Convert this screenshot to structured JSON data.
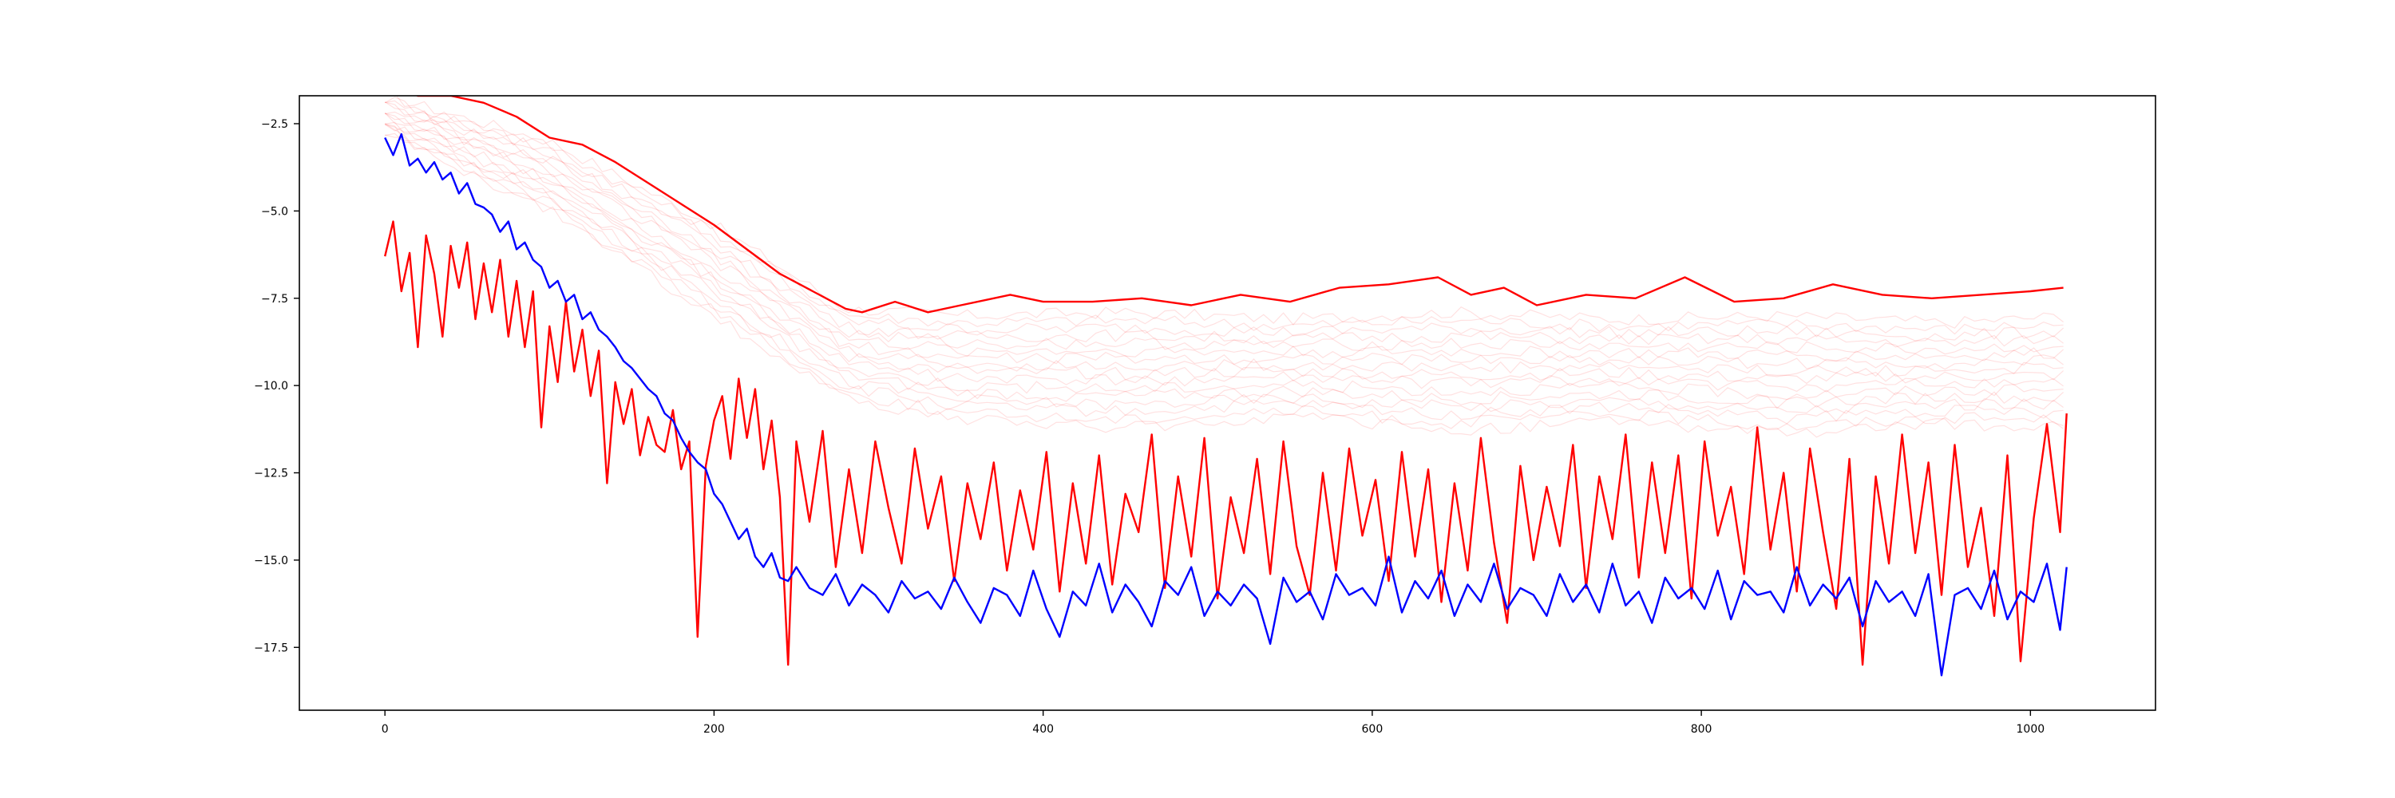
{
  "chart_data": {
    "type": "line",
    "title": "",
    "xlabel": "",
    "ylabel": "",
    "xlim": [
      -52,
      1076
    ],
    "ylim": [
      -19.3,
      -1.7
    ],
    "grid": false,
    "legend": "none",
    "x_ticks": [
      {
        "value": 0,
        "label": "0"
      },
      {
        "value": 200,
        "label": "200"
      },
      {
        "value": 400,
        "label": "400"
      },
      {
        "value": 600,
        "label": "600"
      },
      {
        "value": 800,
        "label": "800"
      },
      {
        "value": 1000,
        "label": "1000"
      }
    ],
    "y_ticks": [
      {
        "value": -2.5,
        "label": "−2.5"
      },
      {
        "value": -5.0,
        "label": "−5.0"
      },
      {
        "value": -7.5,
        "label": "−7.5"
      },
      {
        "value": -10.0,
        "label": "−10.0"
      },
      {
        "value": -12.5,
        "label": "−12.5"
      },
      {
        "value": -15.0,
        "label": "−15.0"
      },
      {
        "value": -17.5,
        "label": "−17.5"
      }
    ],
    "colors": {
      "upper": "#ff0000",
      "noisy_red": "#ff0000",
      "blue": "#0000ff",
      "faint": "#ff0000"
    },
    "series": [
      {
        "key": "upper",
        "color": "#ff0000",
        "x": [
          0,
          10,
          20,
          40,
          60,
          80,
          100,
          120,
          140,
          160,
          180,
          200,
          220,
          240,
          260,
          280,
          290,
          310,
          330,
          350,
          380,
          400,
          430,
          460,
          490,
          520,
          550,
          580,
          610,
          640,
          660,
          680,
          700,
          730,
          760,
          790,
          820,
          850,
          880,
          910,
          940,
          970,
          1000,
          1020
        ],
        "y": [
          -1.4,
          -1.5,
          -1.7,
          -1.7,
          -1.9,
          -2.3,
          -2.9,
          -3.1,
          -3.6,
          -4.2,
          -4.8,
          -5.4,
          -6.1,
          -6.8,
          -7.3,
          -7.8,
          -7.9,
          -7.6,
          -7.9,
          -7.7,
          -7.4,
          -7.6,
          -7.6,
          -7.5,
          -7.7,
          -7.4,
          -7.6,
          -7.2,
          -7.1,
          -6.9,
          -7.4,
          -7.2,
          -7.7,
          -7.4,
          -7.5,
          -6.9,
          -7.6,
          -7.5,
          -7.1,
          -7.4,
          -7.5,
          -7.4,
          -7.3,
          -7.2
        ]
      },
      {
        "key": "noisy_red",
        "color": "#ff0000",
        "x": [
          0,
          5,
          10,
          15,
          20,
          25,
          30,
          35,
          40,
          45,
          50,
          55,
          60,
          65,
          70,
          75,
          80,
          85,
          90,
          95,
          100,
          105,
          110,
          115,
          120,
          125,
          130,
          135,
          140,
          145,
          150,
          155,
          160,
          165,
          170,
          175,
          180,
          185,
          190,
          195,
          200,
          205,
          210,
          215,
          220,
          225,
          230,
          235,
          240,
          245,
          250,
          258,
          266,
          274,
          282,
          290,
          298,
          306,
          314,
          322,
          330,
          338,
          346,
          354,
          362,
          370,
          378,
          386,
          394,
          402,
          410,
          418,
          426,
          434,
          442,
          450,
          458,
          466,
          474,
          482,
          490,
          498,
          506,
          514,
          522,
          530,
          538,
          546,
          554,
          562,
          570,
          578,
          586,
          594,
          602,
          610,
          618,
          626,
          634,
          642,
          650,
          658,
          666,
          674,
          682,
          690,
          698,
          706,
          714,
          722,
          730,
          738,
          746,
          754,
          762,
          770,
          778,
          786,
          794,
          802,
          810,
          818,
          826,
          834,
          842,
          850,
          858,
          866,
          874,
          882,
          890,
          898,
          906,
          914,
          922,
          930,
          938,
          946,
          954,
          962,
          970,
          978,
          986,
          994,
          1002,
          1010,
          1018,
          1022
        ],
        "y": [
          -6.3,
          -5.3,
          -7.3,
          -6.2,
          -8.9,
          -5.7,
          -6.8,
          -8.6,
          -6.0,
          -7.2,
          -5.9,
          -8.1,
          -6.5,
          -7.9,
          -6.4,
          -8.6,
          -7.0,
          -8.9,
          -7.3,
          -11.2,
          -8.3,
          -9.9,
          -7.6,
          -9.6,
          -8.4,
          -10.3,
          -9.0,
          -12.8,
          -9.9,
          -11.1,
          -10.1,
          -12.0,
          -10.9,
          -11.7,
          -11.9,
          -10.7,
          -12.4,
          -11.6,
          -17.2,
          -12.3,
          -11.0,
          -10.3,
          -12.1,
          -9.8,
          -11.5,
          -10.1,
          -12.4,
          -11.0,
          -13.2,
          -18.0,
          -11.6,
          -13.9,
          -11.3,
          -15.2,
          -12.4,
          -14.8,
          -11.6,
          -13.5,
          -15.1,
          -11.8,
          -14.1,
          -12.6,
          -15.6,
          -12.8,
          -14.4,
          -12.2,
          -15.3,
          -13.0,
          -14.7,
          -11.9,
          -15.9,
          -12.8,
          -15.1,
          -12.0,
          -15.7,
          -13.1,
          -14.2,
          -11.4,
          -15.8,
          -12.6,
          -14.9,
          -11.5,
          -16.1,
          -13.2,
          -14.8,
          -12.1,
          -15.4,
          -11.6,
          -14.6,
          -16.0,
          -12.5,
          -15.3,
          -11.8,
          -14.3,
          -12.7,
          -15.6,
          -11.9,
          -14.9,
          -12.4,
          -16.2,
          -12.8,
          -15.3,
          -11.5,
          -14.5,
          -16.8,
          -12.3,
          -15.0,
          -12.9,
          -14.6,
          -11.7,
          -15.8,
          -12.6,
          -14.4,
          -11.4,
          -15.5,
          -12.2,
          -14.8,
          -12.0,
          -16.1,
          -11.6,
          -14.3,
          -12.9,
          -15.4,
          -11.2,
          -14.7,
          -12.5,
          -15.9,
          -11.8,
          -14.2,
          -16.4,
          -12.1,
          -18.0,
          -12.6,
          -15.1,
          -11.4,
          -14.8,
          -12.2,
          -16.0,
          -11.7,
          -15.2,
          -13.5,
          -16.6,
          -12.0,
          -17.9,
          -13.8,
          -11.1,
          -14.2,
          -10.8
        ]
      },
      {
        "key": "blue",
        "color": "#0000ff",
        "x": [
          0,
          5,
          10,
          15,
          20,
          25,
          30,
          35,
          40,
          45,
          50,
          55,
          60,
          65,
          70,
          75,
          80,
          85,
          90,
          95,
          100,
          105,
          110,
          115,
          120,
          125,
          130,
          135,
          140,
          145,
          150,
          155,
          160,
          165,
          170,
          175,
          180,
          185,
          190,
          195,
          200,
          205,
          210,
          215,
          220,
          225,
          230,
          235,
          240,
          245,
          250,
          258,
          266,
          274,
          282,
          290,
          298,
          306,
          314,
          322,
          330,
          338,
          346,
          354,
          362,
          370,
          378,
          386,
          394,
          402,
          410,
          418,
          426,
          434,
          442,
          450,
          458,
          466,
          474,
          482,
          490,
          498,
          506,
          514,
          522,
          530,
          538,
          546,
          554,
          562,
          570,
          578,
          586,
          594,
          602,
          610,
          618,
          626,
          634,
          642,
          650,
          658,
          666,
          674,
          682,
          690,
          698,
          706,
          714,
          722,
          730,
          738,
          746,
          754,
          762,
          770,
          778,
          786,
          794,
          802,
          810,
          818,
          826,
          834,
          842,
          850,
          858,
          866,
          874,
          882,
          890,
          898,
          906,
          914,
          922,
          930,
          938,
          946,
          954,
          962,
          970,
          978,
          986,
          994,
          1002,
          1010,
          1018,
          1022
        ],
        "y": [
          -2.9,
          -3.4,
          -2.8,
          -3.7,
          -3.5,
          -3.9,
          -3.6,
          -4.1,
          -3.9,
          -4.5,
          -4.2,
          -4.8,
          -4.9,
          -5.1,
          -5.6,
          -5.3,
          -6.1,
          -5.9,
          -6.4,
          -6.6,
          -7.2,
          -7.0,
          -7.6,
          -7.4,
          -8.1,
          -7.9,
          -8.4,
          -8.6,
          -8.9,
          -9.3,
          -9.5,
          -9.8,
          -10.1,
          -10.3,
          -10.8,
          -11.0,
          -11.5,
          -11.9,
          -12.2,
          -12.4,
          -13.1,
          -13.4,
          -13.9,
          -14.4,
          -14.1,
          -14.9,
          -15.2,
          -14.8,
          -15.5,
          -15.6,
          -15.2,
          -15.8,
          -16.0,
          -15.4,
          -16.3,
          -15.7,
          -16.0,
          -16.5,
          -15.6,
          -16.1,
          -15.9,
          -16.4,
          -15.5,
          -16.2,
          -16.8,
          -15.8,
          -16.0,
          -16.6,
          -15.3,
          -16.4,
          -17.2,
          -15.9,
          -16.3,
          -15.1,
          -16.5,
          -15.7,
          -16.2,
          -16.9,
          -15.6,
          -16.0,
          -15.2,
          -16.6,
          -15.9,
          -16.3,
          -15.7,
          -16.1,
          -17.4,
          -15.5,
          -16.2,
          -15.9,
          -16.7,
          -15.4,
          -16.0,
          -15.8,
          -16.3,
          -14.9,
          -16.5,
          -15.6,
          -16.1,
          -15.3,
          -16.6,
          -15.7,
          -16.2,
          -15.1,
          -16.4,
          -15.8,
          -16.0,
          -16.6,
          -15.4,
          -16.2,
          -15.7,
          -16.5,
          -15.1,
          -16.3,
          -15.9,
          -16.8,
          -15.5,
          -16.1,
          -15.8,
          -16.4,
          -15.3,
          -16.7,
          -15.6,
          -16.0,
          -15.9,
          -16.5,
          -15.2,
          -16.3,
          -15.7,
          -16.1,
          -15.5,
          -16.9,
          -15.6,
          -16.2,
          -15.9,
          -16.6,
          -15.4,
          -18.3,
          -16.0,
          -15.8,
          -16.4,
          -15.3,
          -16.7,
          -15.9,
          -16.2,
          -15.1,
          -17.0,
          -15.2
        ]
      }
    ],
    "faint_band": {
      "color": "#ff0000",
      "opacity": 0.12,
      "count": 16,
      "x": [
        0,
        100,
        200,
        280,
        350,
        450,
        550,
        650,
        750,
        850,
        950,
        1022
      ],
      "upper": [
        -1.7,
        -3.0,
        -5.4,
        -7.8,
        -8.0,
        -7.9,
        -8.1,
        -7.9,
        -8.1,
        -8.0,
        -8.2,
        -8.0
      ],
      "lower": [
        -2.8,
        -5.0,
        -8.0,
        -10.4,
        -11.0,
        -11.2,
        -10.9,
        -11.3,
        -11.0,
        -11.4,
        -11.1,
        -11.2
      ]
    }
  }
}
